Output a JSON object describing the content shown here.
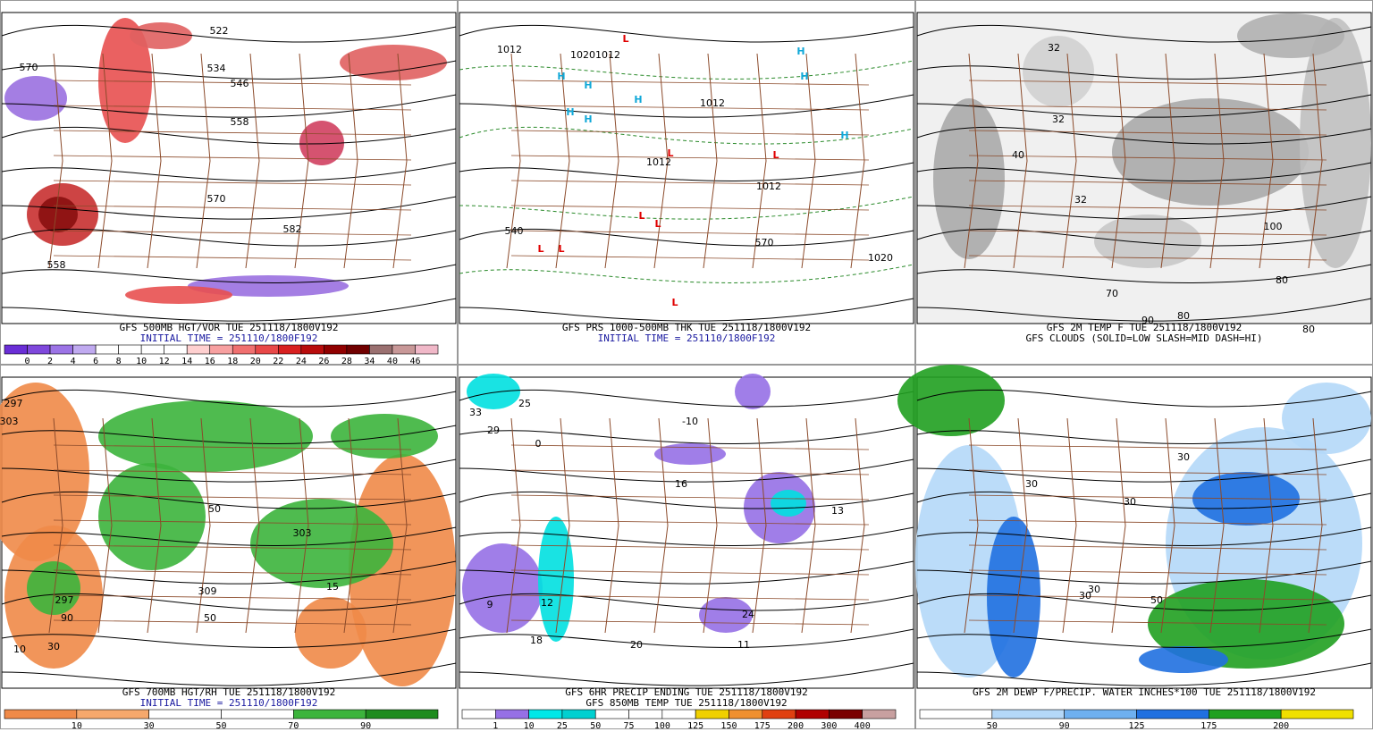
{
  "panels": [
    {
      "caption": [
        "GFS 500MB HGT/VOR TUE 251118/1800V192",
        "INITIAL TIME = 251110/1800F192"
      ],
      "colorbar": {
        "labels": [
          "0",
          "2",
          "4",
          "6",
          "8",
          "10",
          "12",
          "14",
          "16",
          "18",
          "20",
          "22",
          "24",
          "26",
          "28",
          "34",
          "40",
          "46"
        ],
        "colors": [
          "#6a2ed6",
          "#7f48dc",
          "#9c74e6",
          "#c0aaf0",
          "#ffffff",
          "#ffffff",
          "#ffffff",
          "#ffffff",
          "#ffd0d0",
          "#f7a0a0",
          "#f07070",
          "#e84848",
          "#d82020",
          "#b80c0c",
          "#900000",
          "#700000",
          "#9a7070",
          "#c89898",
          "#f0b8c8"
        ]
      },
      "map_labels": [
        "522",
        "534",
        "546",
        "558",
        "570",
        "582",
        "558",
        "570"
      ]
    },
    {
      "caption": [
        "GFS PRS 1000-500MB THK TUE 251118/1800V192",
        "INITIAL TIME = 251110/1800F192"
      ],
      "map_labels": [
        "1012",
        "1020",
        "1012",
        "1012",
        "1012",
        "1012",
        "540",
        "1020",
        "570",
        "L",
        "L",
        "L",
        "L",
        "L",
        "L",
        "L",
        "L",
        "H",
        "H",
        "H",
        "H",
        "H",
        "H",
        "H",
        "H"
      ]
    },
    {
      "caption": [
        "GFS 2M TEMP F TUE 251118/1800V192",
        "GFS CLOUDS (SOLID=LOW SLASH=MID DASH=HI)"
      ],
      "map_labels": [
        "32",
        "32",
        "40",
        "32",
        "70",
        "80",
        "90",
        "80",
        "100",
        "80"
      ]
    },
    {
      "caption": [
        "GFS 700MB HGT/RH TUE 251118/1800V192",
        "INITIAL TIME = 251110/1800F192"
      ],
      "colorbar": {
        "labels": [
          "10",
          "30",
          "50",
          "70",
          "90"
        ],
        "colors": [
          "#f08a48",
          "#f6a86c",
          "#ffffff",
          "#ffffff",
          "#3cb43c",
          "#1e8c1e"
        ]
      },
      "map_labels": [
        "297",
        "303",
        "50",
        "303",
        "309",
        "15",
        "297",
        "10",
        "30",
        "90",
        "50"
      ]
    },
    {
      "caption": [
        "GFS 6HR PRECIP ENDING TUE 251118/1800V192",
        "GFS 850MB TEMP TUE 251118/1800V192"
      ],
      "colorbar": {
        "labels": [
          "1",
          "10",
          "25",
          "50",
          "75",
          "100",
          "125",
          "150",
          "175",
          "200",
          "300",
          "400"
        ],
        "colors": [
          "#ffffff",
          "#9670e6",
          "#00e8e8",
          "#00d0d0",
          "#ffffff",
          "#ffffff",
          "#ffffff",
          "#f0d000",
          "#f09030",
          "#e04010",
          "#b00000",
          "#7a0000",
          "#c8a0a0"
        ]
      },
      "map_labels": [
        "25",
        "33",
        "29",
        "9",
        "12",
        "18",
        "24",
        "11",
        "16",
        "13",
        "0",
        "-10",
        "20"
      ]
    },
    {
      "caption": [
        "GFS 2M DEWP F/PRECIP. WATER INCHES*100 TUE 251118/1800V192"
      ],
      "colorbar": {
        "labels": [
          "50",
          "90",
          "125",
          "175",
          "200"
        ],
        "colors": [
          "#ffffff",
          "#b4d8f8",
          "#6eb0f0",
          "#2070e0",
          "#20a020",
          "#f0e000"
        ]
      },
      "map_labels": [
        "30",
        "30",
        "50",
        "30",
        "30",
        "30"
      ]
    }
  ]
}
